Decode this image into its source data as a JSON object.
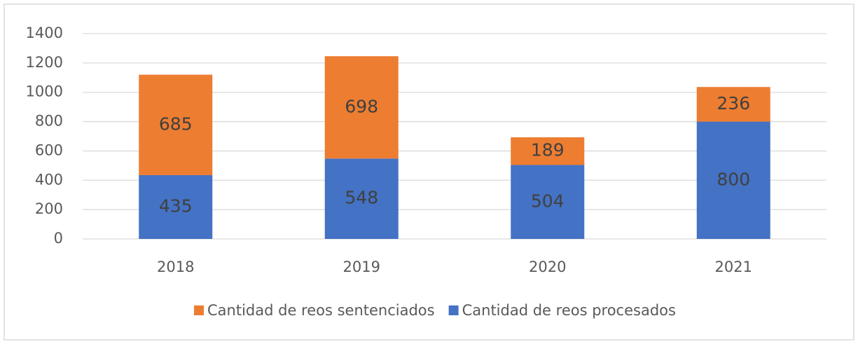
{
  "chart_data": {
    "type": "stacked_bar",
    "categories": [
      "2018",
      "2019",
      "2020",
      "2021"
    ],
    "series": [
      {
        "name": "Cantidad de reos sentenciados",
        "color": "#ed7d31",
        "values": [
          685,
          698,
          189,
          236
        ]
      },
      {
        "name": "Cantidad de reos procesados",
        "color": "#4472c4",
        "values": [
          435,
          548,
          504,
          800
        ]
      }
    ],
    "ylim": [
      0,
      1400
    ],
    "yticks": [
      0,
      200,
      400,
      600,
      800,
      1000,
      1200,
      1400
    ],
    "grid": true,
    "legend": "bottom"
  }
}
